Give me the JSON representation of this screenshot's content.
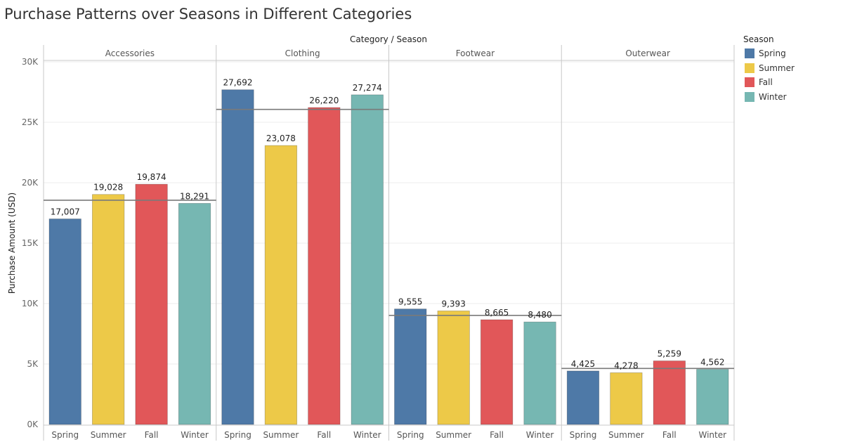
{
  "chart_data": {
    "type": "bar",
    "title": "Purchase Patterns over Seasons in Different Categories",
    "header_label": "Category / Season",
    "ylabel": "Purchase Amount (USD)",
    "ylim": [
      0,
      30000
    ],
    "yticks": [
      {
        "value": 0,
        "label": "0K"
      },
      {
        "value": 5000,
        "label": "5K"
      },
      {
        "value": 10000,
        "label": "10K"
      },
      {
        "value": 15000,
        "label": "15K"
      },
      {
        "value": 20000,
        "label": "20K"
      },
      {
        "value": 25000,
        "label": "25K"
      },
      {
        "value": 30000,
        "label": "30K"
      }
    ],
    "grid": true,
    "legend": {
      "title": "Season",
      "placement": "top-right",
      "items": [
        {
          "label": "Spring",
          "color": "#4e79a7"
        },
        {
          "label": "Summer",
          "color": "#edc948"
        },
        {
          "label": "Fall",
          "color": "#e15759"
        },
        {
          "label": "Winter",
          "color": "#76b7b2"
        }
      ]
    },
    "panels": [
      {
        "category": "Accessories",
        "average": 18550,
        "bars": [
          {
            "season": "Spring",
            "value": 17007,
            "label": "17,007"
          },
          {
            "season": "Summer",
            "value": 19028,
            "label": "19,028"
          },
          {
            "season": "Fall",
            "value": 19874,
            "label": "19,874"
          },
          {
            "season": "Winter",
            "value": 18291,
            "label": "18,291"
          }
        ]
      },
      {
        "category": "Clothing",
        "average": 26066,
        "bars": [
          {
            "season": "Spring",
            "value": 27692,
            "label": "27,692"
          },
          {
            "season": "Summer",
            "value": 23078,
            "label": "23,078"
          },
          {
            "season": "Fall",
            "value": 26220,
            "label": "26,220"
          },
          {
            "season": "Winter",
            "value": 27274,
            "label": "27,274"
          }
        ]
      },
      {
        "category": "Footwear",
        "average": 9023,
        "bars": [
          {
            "season": "Spring",
            "value": 9555,
            "label": "9,555"
          },
          {
            "season": "Summer",
            "value": 9393,
            "label": "9,393"
          },
          {
            "season": "Fall",
            "value": 8665,
            "label": "8,665"
          },
          {
            "season": "Winter",
            "value": 8480,
            "label": "8,480"
          }
        ]
      },
      {
        "category": "Outerwear",
        "average": 4631,
        "bars": [
          {
            "season": "Spring",
            "value": 4425,
            "label": "4,425"
          },
          {
            "season": "Summer",
            "value": 4278,
            "label": "4,278"
          },
          {
            "season": "Fall",
            "value": 5259,
            "label": "5,259"
          },
          {
            "season": "Winter",
            "value": 4562,
            "label": "4,562"
          }
        ]
      }
    ]
  }
}
